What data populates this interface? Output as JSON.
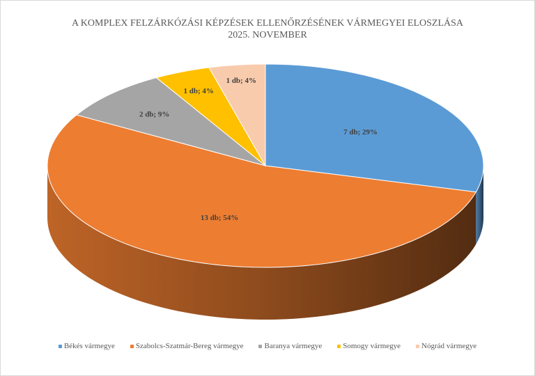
{
  "chart_data": {
    "type": "pie",
    "title": "A KOMPLEX FELZÁRKÓZÁSI KÉPZÉSEK ELLENŐRZÉSÉNEK VÁRMEGYEI ELOSZLÁSA",
    "subtitle": "2025. NOVEMBER",
    "style": "3d",
    "legend_position": "bottom",
    "categories": [
      "Békés vármegye",
      "Szabolcs-Szatmár-Bereg vármegye",
      "Baranya vármegye",
      "Somogy vármegye",
      "Nógrád vármegye"
    ],
    "values": [
      7,
      13,
      2,
      1,
      1
    ],
    "percents": [
      29,
      54,
      9,
      4,
      4
    ],
    "data_labels": [
      "7 db; 29%",
      "13 db; 54%",
      "2 db; 9%",
      "1 db; 4%",
      "1 db; 4%"
    ],
    "colors": [
      "#5B9BD5",
      "#ED7D31",
      "#A5A5A5",
      "#FFC000",
      "#F8CBAD"
    ]
  }
}
